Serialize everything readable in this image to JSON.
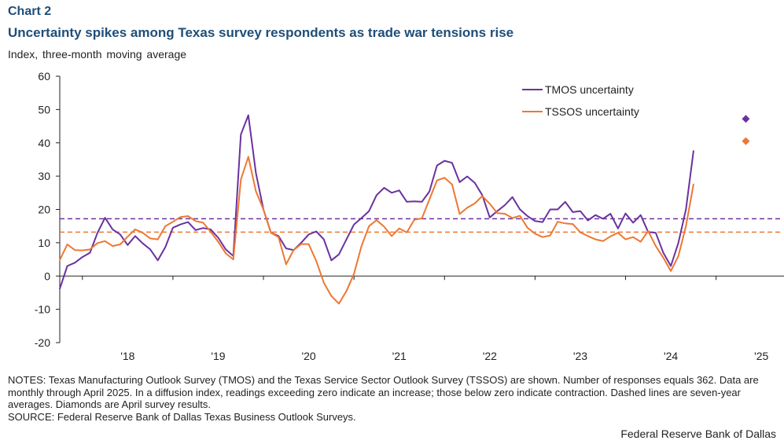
{
  "header": {
    "label": "Chart 2",
    "title": "Uncertainty spikes among Texas survey respondents as trade war tensions rise",
    "subtitle": "Index, three-month moving average"
  },
  "notes": {
    "notes_text": "NOTES: Texas Manufacturing Outlook Survey (TMOS) and the Texas Service Sector Outlook Survey (TSSOS) are shown. Number of responses equals 362. Data are monthly through April 2025. In a diffusion index, readings exceeding zero indicate an increase; those below zero indicate contraction. Dashed lines are seven-year averages. Diamonds are April survey results.",
    "source_text": "SOURCE: Federal Reserve Bank of Dallas Texas Business Outlook Surveys."
  },
  "credit": "Federal Reserve Bank of Dallas",
  "colors": {
    "tmos": "#6a329f",
    "tssos": "#ee7733",
    "axis": "#222222"
  },
  "chart_data": {
    "type": "line",
    "title": "Uncertainty spikes among Texas survey respondents as trade war tensions rise",
    "ylabel": "Index, three-month moving average",
    "xlabel": "",
    "ylim": [
      -20,
      60
    ],
    "yticks": [
      -20,
      -10,
      0,
      10,
      20,
      30,
      40,
      50,
      60
    ],
    "ytick_labels": [
      "-20",
      "-10",
      "0",
      "10",
      "20",
      "30",
      "40",
      "50",
      "60"
    ],
    "xlim": [
      2017.75,
      2025.75
    ],
    "xticks": [
      2018,
      2019,
      2020,
      2021,
      2022,
      2023,
      2024,
      2025
    ],
    "xtick_labels": [
      "'18",
      "'19",
      "'20",
      "'21",
      "'22",
      "'23",
      "'24",
      "'25"
    ],
    "legend_position": "top-right",
    "start": "2017-10",
    "series": [
      {
        "name": "TMOS uncertainty",
        "color": "#6a329f",
        "values": [
          -3.8,
          3.0,
          4.0,
          5.7,
          7.0,
          13.0,
          17.5,
          14.0,
          12.5,
          9.3,
          12.0,
          9.8,
          8.0,
          4.7,
          8.7,
          14.5,
          15.5,
          16.2,
          13.8,
          14.4,
          14.0,
          11.5,
          8.0,
          6.0,
          42.5,
          48.3,
          31.0,
          20.0,
          13.0,
          12.0,
          8.3,
          7.8,
          10.0,
          12.5,
          13.4,
          11.0,
          4.7,
          6.5,
          11.0,
          15.5,
          17.4,
          19.5,
          24.3,
          26.5,
          25.0,
          25.7,
          22.3,
          22.4,
          22.3,
          25.4,
          33.2,
          34.6,
          34.0,
          28.2,
          29.9,
          28.0,
          24.3,
          17.6,
          19.5,
          21.3,
          23.7,
          20.0,
          18.0,
          16.5,
          16.2,
          20.0,
          20.0,
          22.3,
          19.2,
          19.5,
          16.7,
          18.3,
          17.2,
          18.7,
          14.3,
          18.8,
          16.0,
          18.3,
          13.2,
          13.0,
          7.0,
          3.0,
          10.0,
          20.0,
          37.5
        ]
      },
      {
        "name": "TSSOS uncertainty",
        "color": "#ee7733",
        "values": [
          4.8,
          9.5,
          7.8,
          7.7,
          8.0,
          9.9,
          10.5,
          9.0,
          9.5,
          11.8,
          14.0,
          13.0,
          11.3,
          11.0,
          15.0,
          16.3,
          17.7,
          18.0,
          16.5,
          16.0,
          13.3,
          10.3,
          6.8,
          5.0,
          29.0,
          35.8,
          25.5,
          20.0,
          13.0,
          11.7,
          3.5,
          7.8,
          9.6,
          9.6,
          4.5,
          -2.0,
          -6.0,
          -8.3,
          -4.5,
          0.7,
          9.0,
          15.0,
          16.8,
          14.8,
          12.0,
          14.3,
          13.1,
          16.9,
          17.3,
          23.0,
          28.7,
          29.5,
          27.5,
          18.6,
          20.5,
          21.8,
          24.0,
          21.7,
          18.9,
          18.7,
          17.4,
          18.1,
          14.5,
          12.7,
          11.7,
          12.2,
          16.3,
          15.8,
          15.6,
          13.1,
          12.0,
          11.0,
          10.5,
          11.9,
          13.0,
          11.0,
          11.7,
          10.3,
          13.5,
          9.0,
          5.5,
          1.5,
          6.0,
          15.0,
          27.5
        ]
      }
    ],
    "averages": [
      {
        "name": "TMOS seven-year average",
        "color": "#6a329f",
        "value": 17.2
      },
      {
        "name": "TSSOS seven-year average",
        "color": "#ee7733",
        "value": 13.2
      }
    ],
    "diamonds": [
      {
        "name": "TMOS April survey result",
        "color": "#6a329f",
        "x": "2025-04",
        "value": 47.2
      },
      {
        "name": "TSSOS April survey result",
        "color": "#ee7733",
        "x": "2025-04",
        "value": 40.5
      }
    ]
  }
}
